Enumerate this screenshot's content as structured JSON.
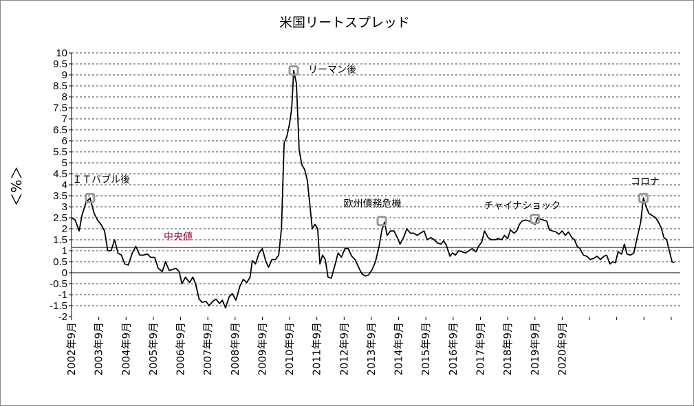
{
  "chart_data": {
    "type": "line",
    "title": "米国リートスプレッド",
    "ylabel": "＜%＞",
    "xlabel": "",
    "ylim": [
      -2,
      10
    ],
    "yticks": [
      "10",
      "9.5",
      "9",
      "8.5",
      "8",
      "7.5",
      "7",
      "6.5",
      "6",
      "5.5",
      "5",
      "4.5",
      "4",
      "3.5",
      "3",
      "2.5",
      "2",
      "1.5",
      "1",
      "0.5",
      "0",
      "-0.5",
      "-1",
      "-1.5",
      "-2"
    ],
    "x_tick_labels": [
      "2002年9月",
      "2003年9月",
      "2004年9月",
      "2005年9月",
      "2006年9月",
      "2007年9月",
      "2008年9月",
      "2009年9月",
      "2010年9月",
      "2011年9月",
      "2012年9月",
      "2013年9月",
      "2014年9月",
      "2015年9月",
      "2016年9月",
      "2017年9月",
      "2018年9月",
      "2019年9月",
      "2020年9月"
    ],
    "median": {
      "label": "中央値",
      "value": 1.15,
      "color": "#990033"
    },
    "grid": "horizontal-dashed",
    "series": [
      {
        "color": "#000000",
        "points": [
          [
            2002.67,
            2.5
          ],
          [
            2002.8,
            2.4
          ],
          [
            2002.95,
            1.9
          ],
          [
            2003.05,
            2.6
          ],
          [
            2003.2,
            3.2
          ],
          [
            2003.35,
            3.4
          ],
          [
            2003.5,
            2.7
          ],
          [
            2003.62,
            2.4
          ],
          [
            2003.75,
            2.2
          ],
          [
            2003.88,
            1.9
          ],
          [
            2004.0,
            1.0
          ],
          [
            2004.12,
            1.0
          ],
          [
            2004.25,
            1.5
          ],
          [
            2004.37,
            0.9
          ],
          [
            2004.5,
            0.8
          ],
          [
            2004.62,
            0.4
          ],
          [
            2004.75,
            0.35
          ],
          [
            2004.9,
            0.9
          ],
          [
            2005.03,
            1.2
          ],
          [
            2005.17,
            0.8
          ],
          [
            2005.3,
            0.8
          ],
          [
            2005.45,
            0.85
          ],
          [
            2005.58,
            0.7
          ],
          [
            2005.72,
            0.7
          ],
          [
            2005.85,
            0.2
          ],
          [
            2006.0,
            0.05
          ],
          [
            2006.12,
            0.5
          ],
          [
            2006.25,
            0.1
          ],
          [
            2006.38,
            0.15
          ],
          [
            2006.5,
            0.2
          ],
          [
            2006.62,
            0.05
          ],
          [
            2006.72,
            -0.5
          ],
          [
            2006.85,
            -0.2
          ],
          [
            2007.0,
            -0.45
          ],
          [
            2007.12,
            -0.2
          ],
          [
            2007.22,
            -0.5
          ],
          [
            2007.35,
            -1.2
          ],
          [
            2007.47,
            -1.35
          ],
          [
            2007.6,
            -1.3
          ],
          [
            2007.72,
            -1.5
          ],
          [
            2007.85,
            -1.3
          ],
          [
            2007.97,
            -1.2
          ],
          [
            2008.1,
            -1.4
          ],
          [
            2008.2,
            -1.25
          ],
          [
            2008.32,
            -1.6
          ],
          [
            2008.45,
            -1.1
          ],
          [
            2008.57,
            -0.95
          ],
          [
            2008.7,
            -1.25
          ],
          [
            2008.85,
            -0.6
          ],
          [
            2008.97,
            -0.3
          ],
          [
            2009.1,
            -0.45
          ],
          [
            2009.22,
            -0.2
          ],
          [
            2009.3,
            0.55
          ],
          [
            2009.42,
            0.4
          ],
          [
            2009.55,
            0.9
          ],
          [
            2009.67,
            1.1
          ],
          [
            2009.8,
            0.5
          ],
          [
            2009.9,
            0.25
          ],
          [
            2010.02,
            0.6
          ],
          [
            2010.15,
            0.6
          ],
          [
            2010.27,
            0.8
          ],
          [
            2010.37,
            2.0
          ],
          [
            2010.47,
            5.9
          ],
          [
            2010.57,
            6.2
          ],
          [
            2010.67,
            6.8
          ],
          [
            2010.75,
            7.5
          ],
          [
            2010.82,
            9.2
          ],
          [
            2010.92,
            8.6
          ],
          [
            2011.02,
            5.6
          ],
          [
            2011.12,
            4.9
          ],
          [
            2011.22,
            4.7
          ],
          [
            2011.32,
            4.2
          ],
          [
            2011.42,
            3.0
          ],
          [
            2011.5,
            2.0
          ],
          [
            2011.6,
            2.2
          ],
          [
            2011.7,
            2.0
          ],
          [
            2011.78,
            0.4
          ],
          [
            2011.88,
            0.8
          ],
          [
            2011.98,
            0.6
          ],
          [
            2012.08,
            -0.2
          ],
          [
            2012.2,
            -0.25
          ],
          [
            2012.32,
            0.3
          ],
          [
            2012.45,
            0.9
          ],
          [
            2012.57,
            0.7
          ],
          [
            2012.7,
            1.1
          ],
          [
            2012.82,
            1.1
          ],
          [
            2012.95,
            0.75
          ],
          [
            2013.07,
            0.6
          ],
          [
            2013.2,
            0.25
          ],
          [
            2013.32,
            -0.05
          ],
          [
            2013.45,
            -0.15
          ],
          [
            2013.57,
            -0.1
          ],
          [
            2013.7,
            0.15
          ],
          [
            2013.82,
            0.5
          ],
          [
            2013.95,
            1.2
          ],
          [
            2014.05,
            1.9
          ],
          [
            2014.15,
            2.3
          ],
          [
            2014.25,
            1.7
          ],
          [
            2014.37,
            1.9
          ],
          [
            2014.5,
            1.9
          ],
          [
            2014.62,
            1.6
          ],
          [
            2014.72,
            1.3
          ],
          [
            2014.85,
            1.6
          ],
          [
            2014.97,
            2.0
          ],
          [
            2015.1,
            1.8
          ],
          [
            2015.22,
            1.8
          ],
          [
            2015.35,
            1.7
          ],
          [
            2015.47,
            1.8
          ],
          [
            2015.6,
            1.9
          ],
          [
            2015.72,
            1.5
          ],
          [
            2015.85,
            1.6
          ],
          [
            2015.97,
            1.5
          ],
          [
            2016.1,
            1.35
          ],
          [
            2016.22,
            1.3
          ],
          [
            2016.32,
            1.45
          ],
          [
            2016.42,
            1.25
          ],
          [
            2016.55,
            0.75
          ],
          [
            2016.65,
            0.9
          ],
          [
            2016.75,
            0.8
          ],
          [
            2016.87,
            1.0
          ],
          [
            2017.0,
            0.95
          ],
          [
            2017.12,
            0.9
          ],
          [
            2017.25,
            1.0
          ],
          [
            2017.37,
            1.1
          ],
          [
            2017.5,
            0.95
          ],
          [
            2017.6,
            1.2
          ],
          [
            2017.72,
            1.4
          ],
          [
            2017.82,
            1.9
          ],
          [
            2017.95,
            1.6
          ],
          [
            2018.07,
            1.5
          ],
          [
            2018.2,
            1.5
          ],
          [
            2018.32,
            1.55
          ],
          [
            2018.45,
            1.5
          ],
          [
            2018.55,
            1.7
          ],
          [
            2018.67,
            1.55
          ],
          [
            2018.77,
            1.95
          ],
          [
            2018.9,
            1.8
          ],
          [
            2019.0,
            1.9
          ],
          [
            2019.1,
            2.2
          ],
          [
            2019.2,
            2.35
          ],
          [
            2019.32,
            2.4
          ],
          [
            2019.45,
            2.35
          ],
          [
            2019.55,
            2.3
          ],
          [
            2019.67,
            2.2
          ],
          [
            2019.77,
            2.5
          ],
          [
            2019.85,
            2.45
          ],
          [
            2019.97,
            2.4
          ],
          [
            2020.1,
            2.35
          ],
          [
            2020.2,
            1.95
          ],
          [
            2020.32,
            1.9
          ],
          [
            2020.45,
            1.85
          ],
          [
            2020.55,
            1.75
          ],
          [
            2020.67,
            1.9
          ],
          [
            2020.78,
            1.7
          ],
          [
            2020.9,
            1.85
          ],
          [
            2021.02,
            1.6
          ],
          [
            2021.12,
            1.5
          ],
          [
            2021.22,
            1.2
          ],
          [
            2021.32,
            1.1
          ],
          [
            2021.45,
            0.8
          ],
          [
            2021.57,
            0.75
          ],
          [
            2021.7,
            0.6
          ],
          [
            2021.82,
            0.65
          ],
          [
            2021.95,
            0.75
          ],
          [
            2022.07,
            0.6
          ],
          [
            2022.2,
            0.75
          ],
          [
            2022.3,
            0.8
          ],
          [
            2022.42,
            0.4
          ],
          [
            2022.52,
            0.5
          ],
          [
            2022.62,
            0.45
          ],
          [
            2022.72,
            0.95
          ],
          [
            2022.85,
            0.85
          ],
          [
            2022.95,
            1.3
          ],
          [
            2023.05,
            0.85
          ],
          [
            2023.17,
            0.8
          ],
          [
            2023.3,
            0.9
          ],
          [
            2023.42,
            1.6
          ],
          [
            2023.55,
            2.3
          ],
          [
            2023.65,
            3.4
          ],
          [
            2023.75,
            3.0
          ],
          [
            2023.85,
            2.7
          ],
          [
            2023.97,
            2.6
          ],
          [
            2024.1,
            2.5
          ],
          [
            2024.2,
            2.3
          ],
          [
            2024.3,
            2.05
          ],
          [
            2024.4,
            1.6
          ],
          [
            2024.5,
            1.5
          ],
          [
            2024.6,
            1.0
          ],
          [
            2024.7,
            0.5
          ],
          [
            2024.78,
            0.45
          ]
        ]
      }
    ],
    "annotations": [
      {
        "text": "ＩＴバブル後",
        "x": 2003.35,
        "y": 3.4,
        "text_x": 2002.7,
        "text_y": 4.1
      },
      {
        "text": "リーマン後",
        "x": 2010.82,
        "y": 9.2,
        "text_x": 2011.35,
        "text_y": 9.1
      },
      {
        "text": "欧州債務危機",
        "x": 2014.05,
        "y": 2.35,
        "text_x": 2012.65,
        "text_y": 3.0
      },
      {
        "text": "チャイナショック",
        "x": 2019.67,
        "y": 2.45,
        "text_x": 2017.8,
        "text_y": 2.9
      },
      {
        "text": "コロナ",
        "x": 2023.65,
        "y": 3.4,
        "text_x": 2023.18,
        "text_y": 4.0
      }
    ]
  }
}
